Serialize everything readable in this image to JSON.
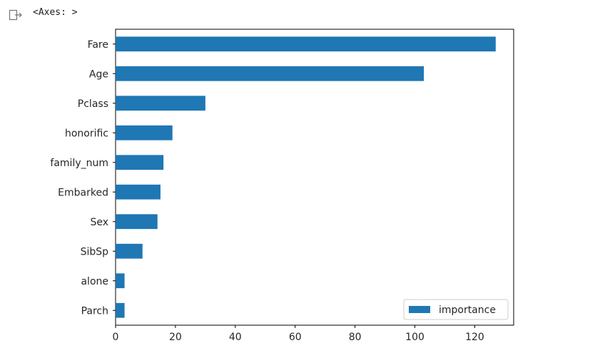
{
  "output": {
    "icon": "output-arrow-icon",
    "repr_text": "<Axes: >"
  },
  "chart_data": {
    "type": "bar",
    "orientation": "horizontal",
    "categories": [
      "Parch",
      "alone",
      "SibSp",
      "Sex",
      "Embarked",
      "family_num",
      "honorific",
      "Pclass",
      "Age",
      "Fare"
    ],
    "series": [
      {
        "name": "importance",
        "values": [
          3,
          3,
          9,
          14,
          15,
          16,
          19,
          30,
          103,
          127
        ],
        "color": "#1f77b4"
      }
    ],
    "xlim": [
      0,
      133
    ],
    "xticks": [
      0,
      20,
      40,
      60,
      80,
      100,
      120
    ],
    "title": "",
    "xlabel": "",
    "ylabel": "",
    "grid": false,
    "legend_position": "lower-right"
  }
}
